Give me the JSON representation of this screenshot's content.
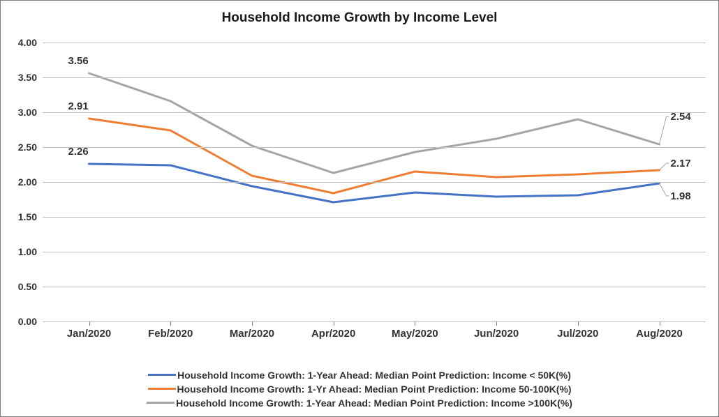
{
  "chart": {
    "type": "line",
    "title": "Household Income Growth by Income Level",
    "title_fontsize": 19,
    "background_color": "#ffffff",
    "border_color": "#7f7f7f",
    "grid_color": "#bfbfbf",
    "text_color": "#333333",
    "label_fontsize": 15,
    "categories": [
      "Jan/2020",
      "Feb/2020",
      "Mar/2020",
      "Apr/2020",
      "May/2020",
      "Jun/2020",
      "Jul/2020",
      "Aug/2020"
    ],
    "ylim": [
      0.0,
      4.0
    ],
    "ytick_step": 0.5,
    "yticks": [
      "0.00",
      "0.50",
      "1.00",
      "1.50",
      "2.00",
      "2.50",
      "3.00",
      "3.50",
      "4.00"
    ],
    "line_width": 3,
    "series": [
      {
        "name": "Household Income Growth: 1-Year Ahead: Median Point Prediction: Income < 50K(%)",
        "color": "#4472c4",
        "values": [
          2.26,
          2.24,
          1.94,
          1.71,
          1.85,
          1.79,
          1.81,
          1.98
        ],
        "start_label": "2.26",
        "end_label": "1.98"
      },
      {
        "name": "Household Income Growth: 1-Yr Ahead: Median Point Prediction: Income 50-100K(%)",
        "color": "#ed7d31",
        "values": [
          2.91,
          2.74,
          2.09,
          1.84,
          2.15,
          2.07,
          2.11,
          2.17
        ],
        "start_label": "2.91",
        "end_label": "2.17"
      },
      {
        "name": "Household Income Growth: 1-Year Ahead: Median Point Prediction: Income >100K(%)",
        "color": "#a5a5a5",
        "values": [
          3.56,
          3.16,
          2.52,
          2.13,
          2.43,
          2.62,
          2.9,
          2.54
        ],
        "start_label": "3.56",
        "end_label": "2.54"
      }
    ]
  }
}
